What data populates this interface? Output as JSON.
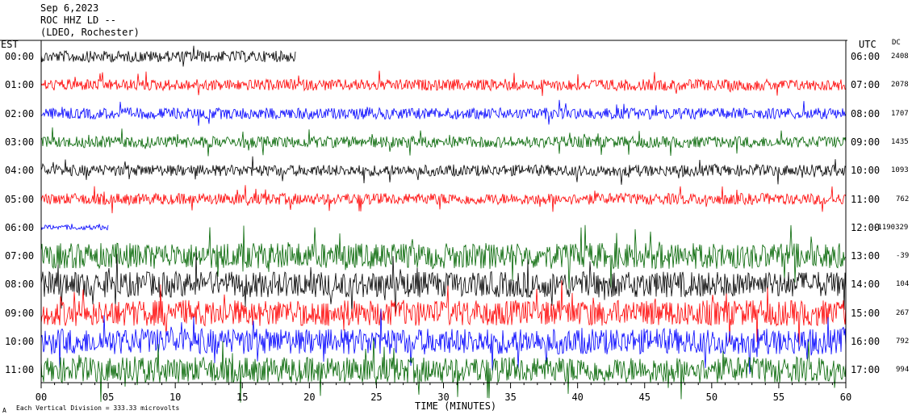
{
  "header": {
    "date": "Sep 6,2023",
    "station": "ROC HHZ LD --",
    "location": "(LDEO, Rochester)"
  },
  "footer": {
    "mark": "A",
    "scale_note": "Each Vertical Division = 333.33 microvolts"
  },
  "colors": {
    "black": "#000000",
    "red": "#ff0000",
    "blue": "#0000ff",
    "green": "#006400"
  },
  "chart_data": {
    "type": "line",
    "left_axis_title": "EST",
    "right_axis_title": "UTC",
    "dc_title": "DC",
    "xlabel": "TIME (MINUTES)",
    "xlim": [
      0,
      60
    ],
    "x_ticks": [
      "00",
      "05",
      "10",
      "15",
      "20",
      "25",
      "30",
      "35",
      "40",
      "45",
      "50",
      "55",
      "60"
    ],
    "traces": [
      {
        "est": "00:00",
        "utc": "06:00",
        "dc": "2408",
        "color": "black",
        "end_minute": 19,
        "amplitude": "moderate"
      },
      {
        "est": "01:00",
        "utc": "07:00",
        "dc": "2078",
        "color": "red",
        "end_minute": 60,
        "amplitude": "moderate"
      },
      {
        "est": "02:00",
        "utc": "08:00",
        "dc": "1707",
        "color": "blue",
        "end_minute": 60,
        "amplitude": "moderate"
      },
      {
        "est": "03:00",
        "utc": "09:00",
        "dc": "1435",
        "color": "green",
        "end_minute": 60,
        "amplitude": "moderate"
      },
      {
        "est": "04:00",
        "utc": "10:00",
        "dc": "1093",
        "color": "black",
        "end_minute": 60,
        "amplitude": "moderate"
      },
      {
        "est": "05:00",
        "utc": "11:00",
        "dc": "762",
        "color": "red",
        "end_minute": 60,
        "amplitude": "moderate"
      },
      {
        "est": "06:00",
        "utc": "12:00",
        "dc": "-1190329",
        "color": "blue",
        "end_minute": 5,
        "amplitude": "low"
      },
      {
        "est": "07:00",
        "utc": "13:00",
        "dc": "-39",
        "color": "green",
        "end_minute": 60,
        "amplitude": "high"
      },
      {
        "est": "08:00",
        "utc": "14:00",
        "dc": "104",
        "color": "black",
        "end_minute": 60,
        "amplitude": "high"
      },
      {
        "est": "09:00",
        "utc": "15:00",
        "dc": "267",
        "color": "red",
        "end_minute": 60,
        "amplitude": "high"
      },
      {
        "est": "10:00",
        "utc": "16:00",
        "dc": "792",
        "color": "blue",
        "end_minute": 60,
        "amplitude": "high"
      },
      {
        "est": "11:00",
        "utc": "17:00",
        "dc": "994",
        "color": "green",
        "end_minute": 60,
        "amplitude": "high"
      }
    ]
  }
}
